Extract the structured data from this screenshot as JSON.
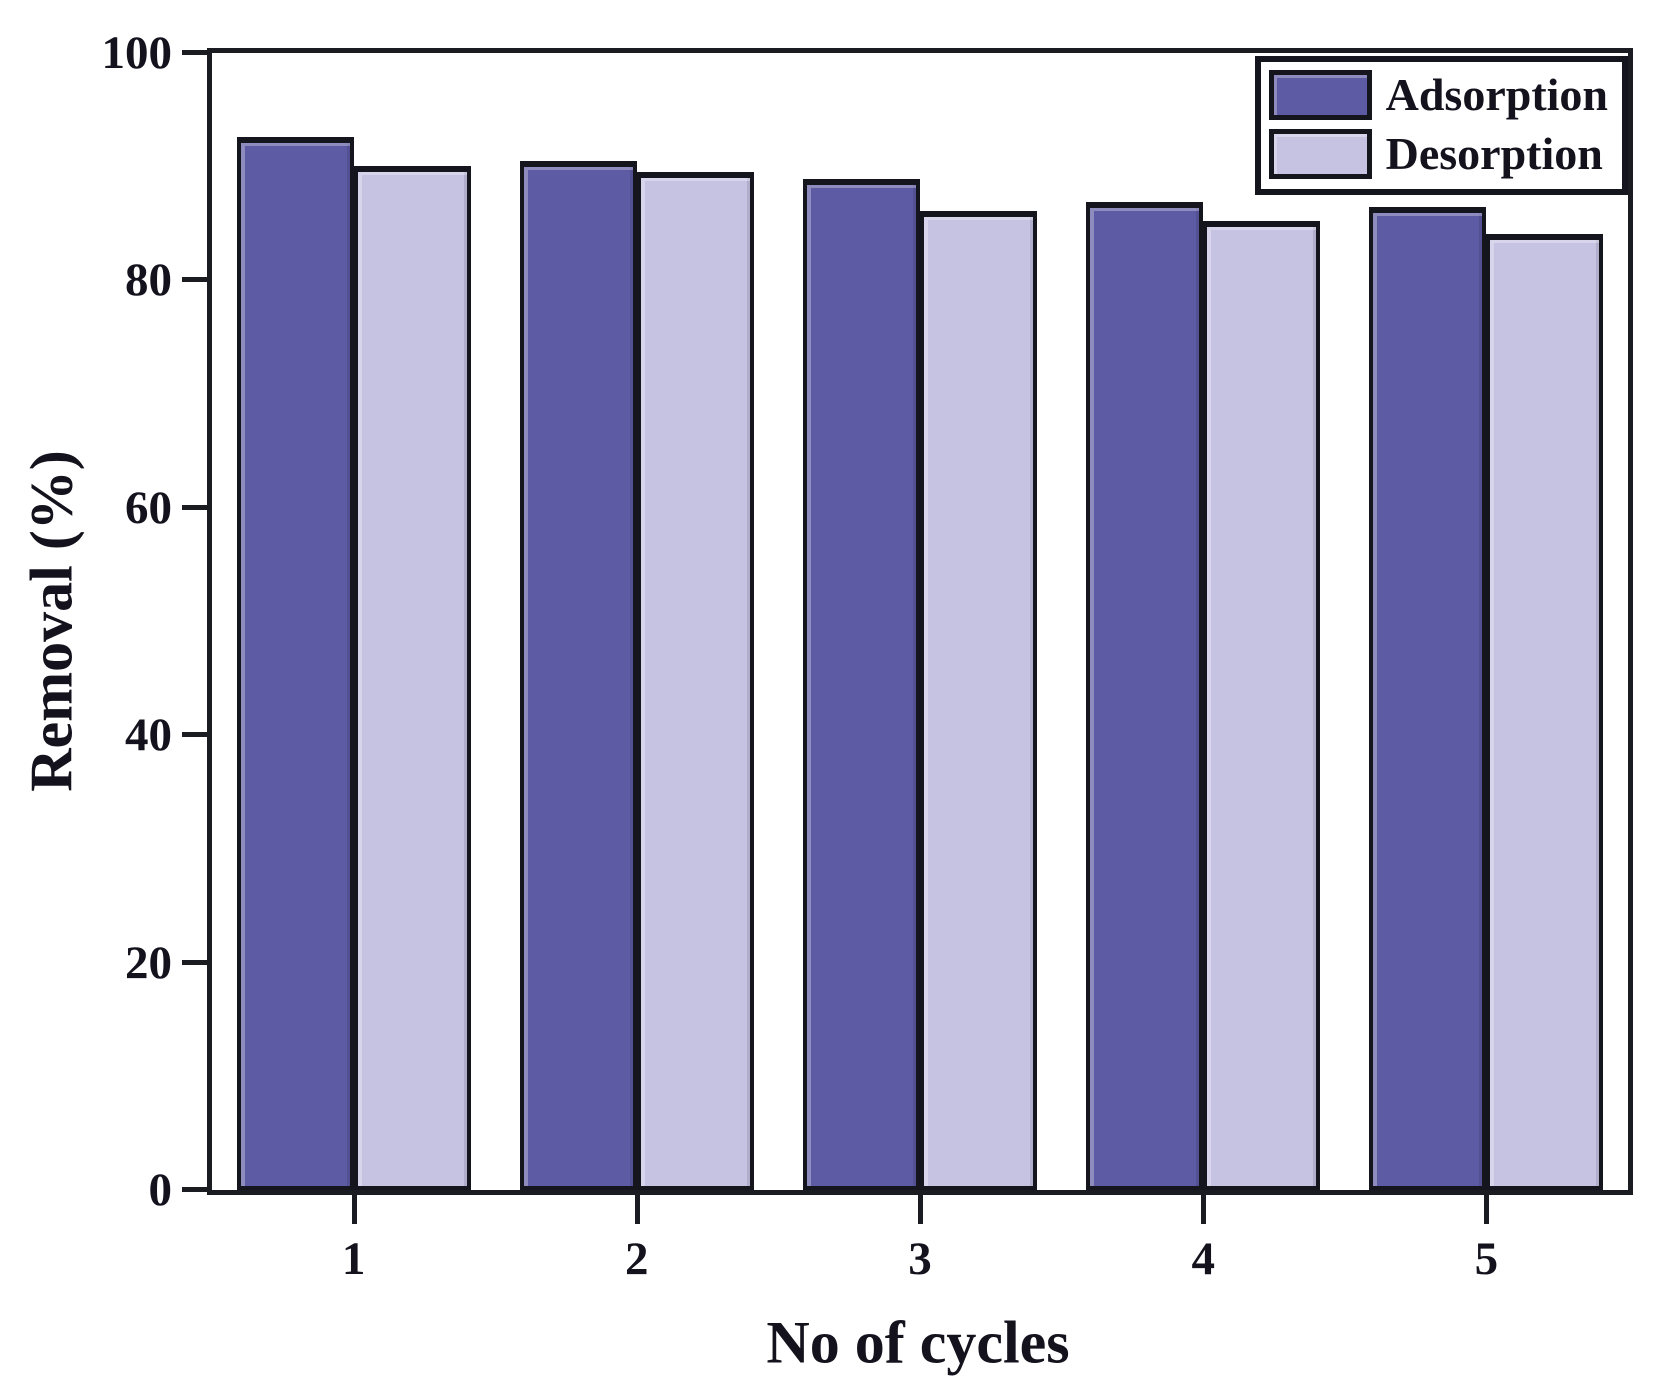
{
  "chart_data": {
    "type": "bar",
    "title": "",
    "xlabel": "No of cycles",
    "ylabel": "Removal (%)",
    "categories": [
      "1",
      "2",
      "3",
      "4",
      "5"
    ],
    "series": [
      {
        "name": "Adsorption",
        "color": "#5d5ba4",
        "values": [
          92.6,
          90.5,
          88.9,
          86.9,
          86.5
        ]
      },
      {
        "name": "Desorption",
        "color": "#c6c2e2",
        "values": [
          90.1,
          89.5,
          86.1,
          85.2,
          84.1
        ]
      }
    ],
    "ylim": [
      0,
      100
    ],
    "yticks": [
      0,
      20,
      40,
      60,
      80,
      100
    ],
    "grid": false,
    "legend_position": "top-right",
    "bar_border_color": "#15151d",
    "axis_color": "#1b1b22"
  }
}
